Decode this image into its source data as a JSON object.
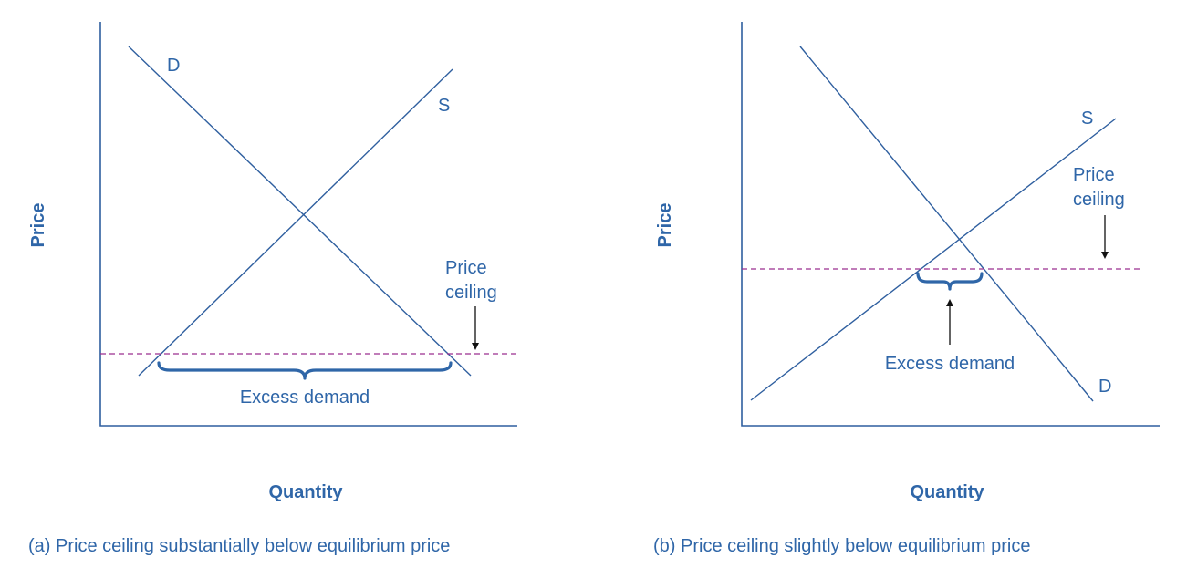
{
  "panel_a": {
    "y_axis_label": "Price",
    "x_axis_label": "Quantity",
    "demand_label": "D",
    "supply_label": "S",
    "ceiling_label_line1": "Price",
    "ceiling_label_line2": "ceiling",
    "excess_label": "Excess demand",
    "caption": "(a) Price ceiling substantially below equilibrium price"
  },
  "panel_b": {
    "y_axis_label": "Price",
    "x_axis_label": "Quantity",
    "demand_label": "D",
    "supply_label": "S",
    "ceiling_label_line1": "Price",
    "ceiling_label_line2": "ceiling",
    "excess_label": "Excess demand",
    "caption": "(b) Price ceiling slightly below equilibrium price"
  },
  "colors": {
    "curve": "#2f5f9f",
    "text": "#2f66a8",
    "ceiling_line": "#9b2d8f",
    "arrow": "#111111"
  }
}
